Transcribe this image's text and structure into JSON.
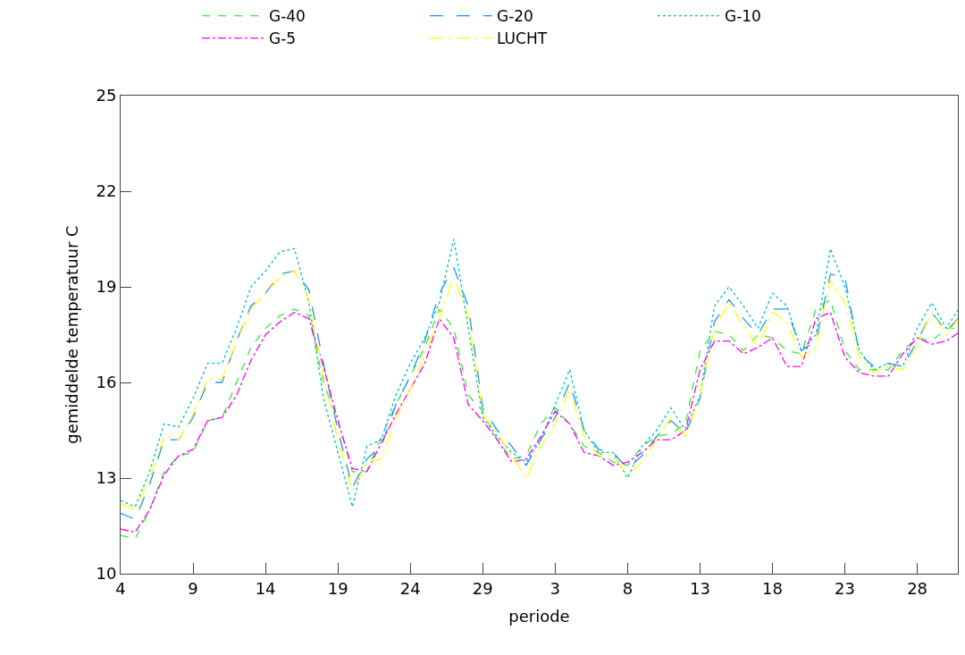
{
  "chart_data": {
    "type": "line",
    "xlabel": "periode",
    "ylabel": "gemiddelde temperatuur C",
    "categories": [
      "4",
      null,
      null,
      null,
      null,
      "9",
      null,
      null,
      null,
      null,
      "14",
      null,
      null,
      null,
      null,
      "19",
      null,
      null,
      null,
      null,
      "24",
      null,
      null,
      null,
      null,
      "29",
      null,
      null,
      null,
      null,
      "3",
      null,
      null,
      null,
      null,
      "8",
      null,
      null,
      null,
      null,
      "13",
      null,
      null,
      null,
      null,
      "18",
      null,
      null,
      null,
      null,
      "23",
      null,
      null,
      null,
      null,
      "28",
      null,
      null,
      null
    ],
    "ylim": [
      10,
      25
    ],
    "yticks": [
      10,
      13,
      16,
      19,
      22,
      25
    ],
    "legend": "top",
    "series": [
      {
        "name": "G-40",
        "color": "#33ee33",
        "line_style": "dashed",
        "values": [
          11.2,
          11.1,
          12.0,
          13.2,
          13.7,
          13.8,
          14.8,
          14.9,
          16.0,
          17.1,
          17.7,
          18.1,
          18.3,
          18.1,
          16.0,
          14.8,
          13.2,
          13.2,
          14.3,
          15.3,
          16.2,
          17.1,
          18.3,
          17.7,
          15.6,
          15.1,
          14.2,
          13.6,
          13.7,
          14.7,
          15.2,
          14.7,
          14.0,
          13.8,
          13.5,
          13.4,
          14.0,
          14.3,
          14.4,
          14.7,
          17.0,
          17.6,
          17.5,
          17.0,
          17.5,
          17.4,
          17.0,
          16.9,
          18.3,
          18.6,
          17.0,
          16.4,
          16.4,
          16.4,
          17.0,
          17.4,
          17.3,
          17.7,
          17.7
        ]
      },
      {
        "name": "G-20",
        "color": "#1e90ff",
        "line_style": "longdash",
        "values": [
          11.9,
          11.7,
          12.8,
          14.2,
          14.2,
          14.9,
          16.0,
          16.0,
          17.3,
          18.4,
          18.8,
          19.4,
          19.5,
          18.9,
          16.6,
          14.5,
          12.7,
          13.6,
          14.0,
          15.3,
          16.2,
          17.3,
          18.8,
          19.6,
          18.4,
          15.2,
          14.5,
          14.0,
          13.4,
          14.2,
          14.9,
          16.0,
          14.5,
          13.9,
          13.8,
          13.3,
          13.7,
          14.3,
          14.8,
          14.4,
          15.5,
          17.9,
          18.6,
          18.0,
          17.5,
          18.3,
          18.3,
          17.0,
          17.3,
          19.4,
          19.3,
          16.9,
          16.5,
          16.6,
          16.5,
          17.3,
          18.2,
          17.6,
          18.1
        ]
      },
      {
        "name": "G-10",
        "color": "#00bfbf",
        "line_style": "dotted",
        "values": [
          12.3,
          12.1,
          13.2,
          14.7,
          14.6,
          15.5,
          16.6,
          16.6,
          17.7,
          19.0,
          19.5,
          20.1,
          20.2,
          18.5,
          15.5,
          13.8,
          12.1,
          14.0,
          14.2,
          15.6,
          16.6,
          17.4,
          18.5,
          20.5,
          17.7,
          14.9,
          14.3,
          13.8,
          13.5,
          14.2,
          15.3,
          16.4,
          14.5,
          13.8,
          13.8,
          13.0,
          14.0,
          14.5,
          15.2,
          14.5,
          15.6,
          18.4,
          19.0,
          18.4,
          17.7,
          18.8,
          18.4,
          17.0,
          17.5,
          20.2,
          19.0,
          17.0,
          16.4,
          16.6,
          16.5,
          17.7,
          18.5,
          17.7,
          18.4
        ]
      },
      {
        "name": "G-5",
        "color": "#ff00ff",
        "line_style": "dashdot",
        "values": [
          11.4,
          11.3,
          12.0,
          13.1,
          13.7,
          13.9,
          14.8,
          14.9,
          15.6,
          16.7,
          17.5,
          17.9,
          18.2,
          18.0,
          16.5,
          14.8,
          13.3,
          13.2,
          14.1,
          15.0,
          15.8,
          16.6,
          18.0,
          17.4,
          15.3,
          14.8,
          14.2,
          13.5,
          13.6,
          14.3,
          15.1,
          14.7,
          13.8,
          13.7,
          13.4,
          13.5,
          13.8,
          14.2,
          14.2,
          14.5,
          16.4,
          17.3,
          17.3,
          16.9,
          17.1,
          17.4,
          16.5,
          16.5,
          18.0,
          18.2,
          16.8,
          16.3,
          16.2,
          16.2,
          16.9,
          17.4,
          17.2,
          17.3,
          17.6
        ]
      },
      {
        "name": "LUCHT",
        "color": "#ffff00",
        "line_style": "longdashdot",
        "values": [
          12.2,
          12.0,
          13.0,
          14.3,
          14.2,
          15.0,
          16.1,
          16.1,
          17.3,
          18.3,
          18.8,
          19.3,
          19.5,
          18.6,
          16.2,
          14.2,
          12.6,
          13.5,
          13.6,
          14.9,
          15.8,
          16.9,
          18.0,
          19.3,
          18.1,
          15.0,
          14.4,
          13.7,
          13.0,
          14.0,
          14.7,
          15.8,
          14.3,
          13.7,
          13.7,
          13.1,
          13.5,
          14.2,
          14.9,
          14.3,
          15.6,
          17.7,
          18.5,
          17.8,
          17.1,
          18.2,
          17.9,
          16.8,
          17.1,
          19.2,
          18.5,
          16.8,
          16.3,
          16.5,
          16.4,
          17.2,
          18.2,
          17.5,
          18.1
        ]
      }
    ]
  }
}
